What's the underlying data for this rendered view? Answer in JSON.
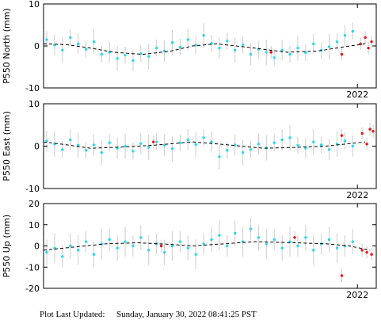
{
  "chart_data": [
    {
      "type": "scatter",
      "ylabel": "P550 North (mm)",
      "xlim": [
        2020.0,
        2022.12
      ],
      "xticks": [
        2022
      ],
      "ylim": [
        -10,
        10
      ],
      "yticks": [
        -10,
        0,
        10
      ],
      "error_color": "#cccccc",
      "series": [
        {
          "color": "#22dded",
          "x": [
            2020.02,
            2020.07,
            2020.12,
            2020.17,
            2020.22,
            2020.27,
            2020.32,
            2020.37,
            2020.42,
            2020.47,
            2020.52,
            2020.57,
            2020.62,
            2020.67,
            2020.72,
            2020.77,
            2020.82,
            2020.87,
            2020.92,
            2020.97,
            2021.02,
            2021.07,
            2021.12,
            2021.17,
            2021.22,
            2021.27,
            2021.32,
            2021.37,
            2021.42,
            2021.47,
            2021.52,
            2021.57,
            2021.62,
            2021.67,
            2021.72,
            2021.77,
            2021.82,
            2021.87,
            2021.92,
            2021.97
          ],
          "values": [
            1.5,
            0.2,
            -1.0,
            2.0,
            0.5,
            -0.8,
            1.0,
            -2.0,
            -1.5,
            -3.0,
            -2.2,
            -3.5,
            -1.8,
            -2.5,
            -0.5,
            -1.2,
            0.8,
            -0.3,
            1.5,
            0.2,
            2.5,
            0.6,
            -0.5,
            1.2,
            -1.0,
            0.3,
            -2.0,
            -0.8,
            -1.5,
            -2.8,
            -1.0,
            -2.0,
            -0.5,
            -1.6,
            0.5,
            -1.0,
            -0.2,
            1.0,
            2.5,
            3.5
          ],
          "errors": [
            2,
            2.5,
            3,
            2,
            2.5,
            2,
            3,
            2,
            2.5,
            3,
            2,
            2.5,
            2,
            3,
            2,
            2.5,
            3,
            2,
            2.5,
            2,
            3,
            2,
            2.5,
            2,
            3,
            2,
            2.5,
            2,
            3,
            2,
            2.5,
            2,
            3,
            2,
            2.5,
            2,
            3,
            2,
            2.5,
            2
          ]
        },
        {
          "color": "#ee1111",
          "x": [
            2021.45,
            2021.9,
            2022.02,
            2022.05,
            2022.07,
            2022.09
          ],
          "values": [
            -1.5,
            -2.0,
            0.5,
            2.0,
            -0.5,
            1.0
          ],
          "errors": [
            1.5,
            1.5,
            1.5,
            1.5,
            1.5,
            1.5
          ]
        }
      ],
      "model": {
        "color": "#000000",
        "x": [
          2020.0,
          2020.15,
          2020.3,
          2020.45,
          2020.63,
          2020.8,
          2020.95,
          2021.1,
          2021.3,
          2021.55,
          2021.75,
          2021.9,
          2022.05
        ],
        "values": [
          0.5,
          0.3,
          -0.5,
          -1.5,
          -2.0,
          -1.3,
          0.0,
          0.5,
          -0.3,
          -1.5,
          -1.2,
          -0.3,
          0.5
        ]
      }
    },
    {
      "type": "scatter",
      "ylabel": "P550 East (mm)",
      "xlim": [
        2020.0,
        2022.12
      ],
      "xticks": [
        2022
      ],
      "ylim": [
        -10,
        10
      ],
      "yticks": [
        -10,
        0,
        10
      ],
      "error_color": "#cccccc",
      "series": [
        {
          "color": "#22dded",
          "x": [
            2020.02,
            2020.07,
            2020.12,
            2020.17,
            2020.22,
            2020.27,
            2020.32,
            2020.37,
            2020.42,
            2020.47,
            2020.52,
            2020.57,
            2020.62,
            2020.67,
            2020.72,
            2020.77,
            2020.82,
            2020.87,
            2020.92,
            2020.97,
            2021.02,
            2021.07,
            2021.12,
            2021.17,
            2021.22,
            2021.27,
            2021.32,
            2021.37,
            2021.42,
            2021.47,
            2021.52,
            2021.57,
            2021.62,
            2021.67,
            2021.72,
            2021.77,
            2021.82,
            2021.87,
            2021.92,
            2021.97
          ],
          "values": [
            1.2,
            0.5,
            -0.8,
            1.5,
            0.2,
            -1.0,
            0.3,
            -1.5,
            0.8,
            -0.5,
            0.0,
            -1.2,
            0.6,
            -0.3,
            1.0,
            0.2,
            -0.6,
            0.8,
            1.5,
            0.4,
            2.0,
            1.0,
            -2.5,
            -1.0,
            0.3,
            -1.5,
            -0.8,
            0.5,
            -0.4,
            0.8,
            1.5,
            2.0,
            0.2,
            -0.5,
            1.0,
            0.3,
            -0.8,
            0.5,
            1.2,
            0.0
          ],
          "errors": [
            2.5,
            3,
            2,
            2.5,
            3,
            2,
            2.5,
            3,
            2,
            2.5,
            3,
            2,
            2.5,
            3,
            2,
            2.5,
            3,
            2,
            2.5,
            3,
            2,
            2.5,
            3,
            2,
            2.5,
            3,
            2,
            2.5,
            3,
            2,
            2.5,
            3,
            2,
            2.5,
            3,
            2,
            2.5,
            3,
            2,
            2.5
          ]
        },
        {
          "color": "#ee1111",
          "x": [
            2020.7,
            2021.9,
            2022.03,
            2022.06,
            2022.08,
            2022.1
          ],
          "values": [
            1.0,
            2.5,
            3.0,
            0.5,
            4.0,
            3.5
          ],
          "errors": [
            1.5,
            1.5,
            1.5,
            1.5,
            1.5,
            1.5
          ]
        }
      ],
      "model": {
        "color": "#000000",
        "x": [
          2020.0,
          2020.15,
          2020.3,
          2020.5,
          2020.7,
          2020.95,
          2021.15,
          2021.4,
          2021.6,
          2021.8,
          2022.05
        ],
        "values": [
          1.0,
          0.3,
          -0.5,
          -0.2,
          0.2,
          1.0,
          0.4,
          -0.5,
          -0.3,
          0.0,
          1.0
        ]
      }
    },
    {
      "type": "scatter",
      "ylabel": "P550 Up (mm)",
      "xlim": [
        2020.0,
        2022.12
      ],
      "xticks": [
        2022
      ],
      "ylim": [
        -20,
        20
      ],
      "yticks": [
        -20,
        -10,
        0,
        10,
        20
      ],
      "error_color": "#cccccc",
      "series": [
        {
          "color": "#22dded",
          "x": [
            2020.02,
            2020.07,
            2020.12,
            2020.17,
            2020.22,
            2020.27,
            2020.32,
            2020.37,
            2020.42,
            2020.47,
            2020.52,
            2020.57,
            2020.62,
            2020.67,
            2020.72,
            2020.77,
            2020.82,
            2020.87,
            2020.92,
            2020.97,
            2021.02,
            2021.07,
            2021.12,
            2021.17,
            2021.22,
            2021.27,
            2021.32,
            2021.37,
            2021.42,
            2021.47,
            2021.52,
            2021.57,
            2021.62,
            2021.67,
            2021.72,
            2021.77,
            2021.82,
            2021.87,
            2021.92,
            2021.97
          ],
          "values": [
            -3,
            -1,
            -5,
            0,
            -2,
            2,
            -4,
            1,
            3,
            -1,
            2,
            0,
            4,
            -2,
            1,
            -3,
            0,
            2,
            -1,
            -4,
            1,
            3,
            5,
            0,
            6,
            2,
            8,
            4,
            1,
            3,
            -1,
            2,
            0,
            4,
            -2,
            1,
            3,
            -1,
            0,
            2
          ],
          "errors": [
            6,
            7,
            5,
            6,
            7,
            5,
            6,
            7,
            5,
            6,
            7,
            5,
            6,
            7,
            5,
            6,
            7,
            5,
            6,
            7,
            5,
            6,
            7,
            5,
            6,
            7,
            5,
            6,
            7,
            5,
            6,
            7,
            5,
            6,
            7,
            5,
            6,
            7,
            5,
            6
          ]
        },
        {
          "color": "#ee1111",
          "x": [
            2020.75,
            2021.6,
            2021.9,
            2022.03,
            2022.06,
            2022.09
          ],
          "values": [
            0,
            4,
            -14,
            -2,
            -3,
            -4
          ],
          "errors": [
            3,
            3,
            3,
            3,
            3,
            3
          ]
        }
      ],
      "model": {
        "color": "#000000",
        "x": [
          2020.0,
          2020.2,
          2020.4,
          2020.6,
          2020.8,
          2020.95,
          2021.15,
          2021.35,
          2021.6,
          2021.8,
          2021.95,
          2022.08
        ],
        "values": [
          -2.0,
          -0.5,
          1.0,
          1.5,
          0.8,
          0.0,
          1.0,
          2.0,
          1.5,
          1.0,
          0.0,
          -2.0
        ]
      }
    }
  ],
  "footer": {
    "label": "Plot Last Updated:",
    "date": "Sunday, January 30, 2022 08:41:25 PST"
  }
}
